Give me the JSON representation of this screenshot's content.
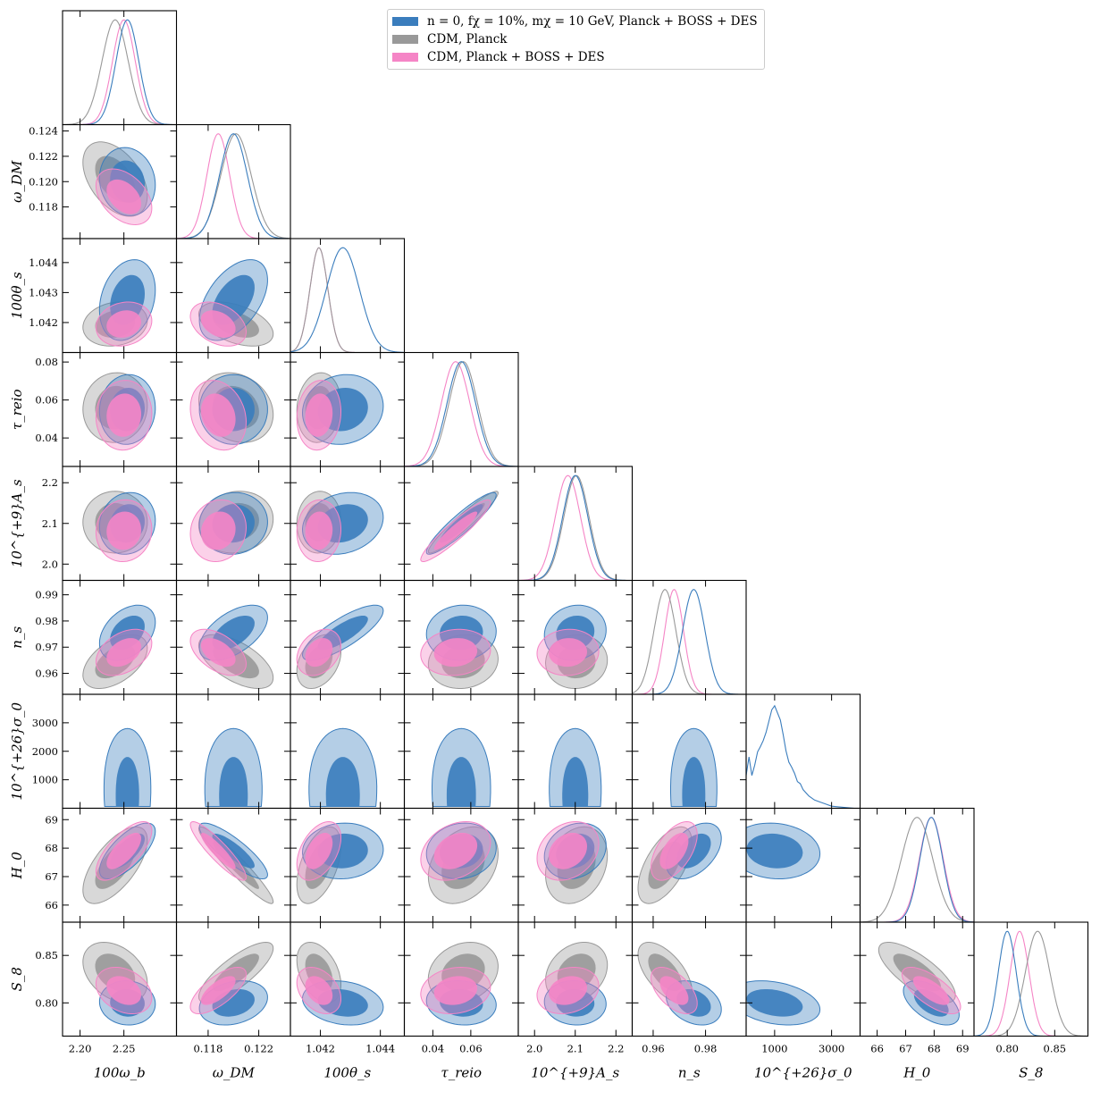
{
  "figure": {
    "legend": [
      {
        "label": "n = 0, fχ = 10%, mχ = 10 GeV, Planck + BOSS + DES",
        "color": "#3a7dbd"
      },
      {
        "label": "CDM, Planck",
        "color": "#999999"
      },
      {
        "label": "CDM, Planck + BOSS + DES",
        "color": "#f585c6"
      }
    ]
  },
  "chart_data": {
    "type": "corner",
    "series": [
      {
        "name": "n = 0, fχ = 10%, mχ = 10 GeV, Planck + BOSS + DES",
        "color": "#3a7dbd"
      },
      {
        "name": "CDM, Planck",
        "color": "#999999"
      },
      {
        "name": "CDM, Planck + BOSS + DES",
        "color": "#f585c6"
      }
    ],
    "parameters": [
      {
        "name": "omega_b",
        "label": "100ω_b",
        "range": [
          2.18,
          2.31
        ],
        "ticks": [
          "2.20",
          "2.25"
        ],
        "tick_values": [
          2.2,
          2.25
        ]
      },
      {
        "name": "omega_dm",
        "label": "ω_DM",
        "range": [
          0.1155,
          0.1245
        ],
        "ticks": [
          "0.118",
          "0.122"
        ],
        "tick_values": [
          0.118,
          0.122
        ]
      },
      {
        "name": "theta_s",
        "label": "100θ_s",
        "range": [
          1.041,
          1.0448
        ],
        "ticks": [
          "1.042",
          "1.044"
        ],
        "tick_values": [
          1.042,
          1.044
        ]
      },
      {
        "name": "tau_reio",
        "label": "τ_reio",
        "range": [
          0.025,
          0.085
        ],
        "ticks": [
          "0.04",
          "0.06"
        ],
        "tick_values": [
          0.04,
          0.06
        ]
      },
      {
        "name": "A_s",
        "label": "10^{+9}A_s",
        "range": [
          1.96,
          2.24
        ],
        "ticks": [
          "2.0",
          "2.1",
          "2.2"
        ],
        "tick_values": [
          2.0,
          2.1,
          2.2
        ]
      },
      {
        "name": "n_s",
        "label": "n_s",
        "range": [
          0.952,
          0.9955
        ],
        "ticks": [
          "0.96",
          "0.98"
        ],
        "tick_values": [
          0.96,
          0.98
        ]
      },
      {
        "name": "sigma_0",
        "label": "10^{+26}σ_0",
        "range": [
          0,
          4000
        ],
        "ticks": [
          "1000",
          "3000"
        ],
        "tick_values": [
          1000,
          3000
        ]
      },
      {
        "name": "H0",
        "label": "H_0",
        "range": [
          65.4,
          69.4
        ],
        "ticks": [
          "66",
          "67",
          "68",
          "69"
        ],
        "tick_values": [
          66,
          67,
          68,
          69
        ]
      },
      {
        "name": "S8",
        "label": "S_8",
        "range": [
          0.765,
          0.885
        ],
        "ticks": [
          "0.80",
          "0.85"
        ],
        "tick_values": [
          0.8,
          0.85
        ]
      }
    ],
    "y_axis_ticks": {
      "omega_dm": [
        "0.118",
        "0.120",
        "0.122",
        "0.124"
      ],
      "theta_s": [
        "1.042",
        "1.043",
        "1.044"
      ],
      "tau_reio": [
        "0.04",
        "0.06",
        "0.08"
      ],
      "A_s": [
        "2.0",
        "2.1",
        "2.2"
      ],
      "n_s": [
        "0.96",
        "0.97",
        "0.98",
        "0.99"
      ],
      "sigma_0": [
        "1000",
        "2000",
        "3000"
      ],
      "H0": [
        "66",
        "67",
        "68",
        "69"
      ],
      "S8": [
        "0.80",
        "0.85"
      ]
    },
    "y_axis_tick_values": {
      "omega_dm": [
        0.118,
        0.12,
        0.122,
        0.124
      ],
      "theta_s": [
        1.042,
        1.043,
        1.044
      ],
      "tau_reio": [
        0.04,
        0.06,
        0.08
      ],
      "A_s": [
        2.0,
        2.1,
        2.2
      ],
      "n_s": [
        0.96,
        0.97,
        0.98,
        0.99
      ],
      "sigma_0": [
        1000,
        2000,
        3000
      ],
      "H0": [
        66,
        67,
        68,
        69
      ],
      "S8": [
        0.8,
        0.85
      ]
    },
    "posterior_mean": [
      [
        2.254,
        0.12,
        1.04275,
        0.055,
        2.1,
        0.9755,
        1000,
        67.9,
        0.8
      ],
      [
        2.24,
        0.1202,
        1.04195,
        0.056,
        2.103,
        0.9645,
        null,
        67.4,
        0.832
      ],
      [
        2.25,
        0.1188,
        1.04195,
        0.052,
        2.082,
        0.968,
        null,
        67.9,
        0.813
      ]
    ],
    "posterior_sigma": [
      [
        0.013,
        0.0011,
        0.00055,
        0.0075,
        0.031,
        0.0043,
        650,
        0.4,
        0.0095
      ],
      [
        0.015,
        0.0012,
        0.0003,
        0.0075,
        0.031,
        0.0042,
        null,
        0.55,
        0.013
      ],
      [
        0.013,
        0.0009,
        0.0003,
        0.0075,
        0.031,
        0.0036,
        null,
        0.42,
        0.01
      ]
    ],
    "sigma0_density_scan": {
      "x": [
        0,
        100,
        200,
        300,
        400,
        500,
        600,
        700,
        800,
        900,
        1000,
        1100,
        1200,
        1300,
        1400,
        1500,
        1600,
        1700,
        1800,
        1900,
        2000,
        2200,
        2400,
        2600,
        2800,
        3000,
        3400,
        3800,
        4000
      ],
      "y": [
        0.32,
        0.5,
        0.32,
        0.42,
        0.55,
        0.6,
        0.66,
        0.74,
        0.85,
        0.96,
        1.0,
        0.93,
        0.86,
        0.72,
        0.56,
        0.45,
        0.4,
        0.34,
        0.26,
        0.24,
        0.18,
        0.12,
        0.08,
        0.06,
        0.04,
        0.02,
        0.01,
        0.0,
        0.0
      ]
    }
  }
}
